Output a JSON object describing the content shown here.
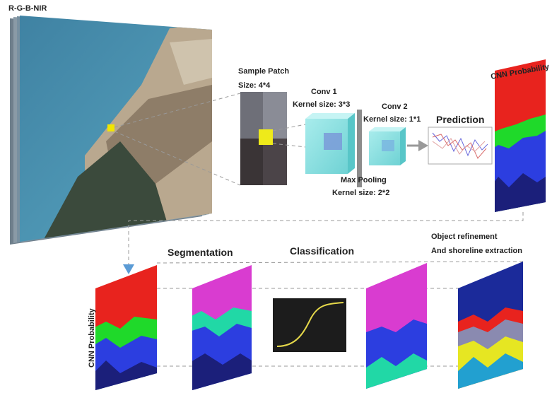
{
  "input": {
    "label": "R-G-B-NIR"
  },
  "patch": {
    "title": "Sample Patch",
    "size": "Size: 4*4"
  },
  "conv1": {
    "title": "Conv 1",
    "kernel": "Kernel size: 3*3"
  },
  "conv2": {
    "title": "Conv 2",
    "kernel": "Kernel size: 1*1"
  },
  "pooling": {
    "title": "Max Pooling",
    "kernel": "Kernel size: 2*2"
  },
  "prediction": {
    "title": "Prediction"
  },
  "output_top": {
    "label": "CNN Probability"
  },
  "stages": {
    "input": "CNN Probability",
    "segmentation": "Segmentation",
    "classification": "Classification",
    "refinement": [
      "Object refinement",
      "And shoreline extraction"
    ]
  }
}
